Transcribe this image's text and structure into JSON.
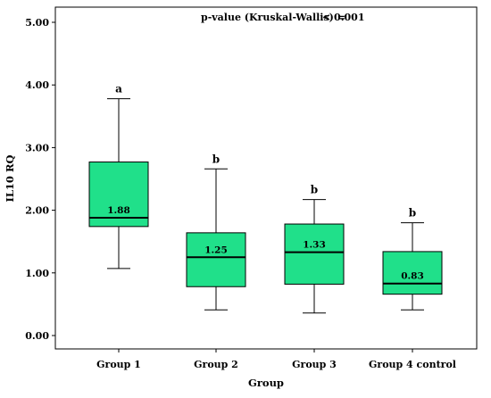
{
  "chart_data": {
    "type": "box",
    "xlabel": "Group",
    "ylabel": "IL10 RQ",
    "ylim": [
      0,
      5
    ],
    "yticks": [
      "0.00",
      "1.00",
      "2.00",
      "3.00",
      "4.00",
      "5.00"
    ],
    "categories": [
      "Group 1",
      "Group 2",
      "Group 3",
      "Group 4 control"
    ],
    "box_color": "#20e08a",
    "annotation": {
      "label": "p-value (Kruskal-Wallis) =",
      "value": "< 0.001"
    },
    "boxes": [
      {
        "category": "Group 1",
        "min": 1.07,
        "q1": 1.74,
        "median": 1.88,
        "q3": 2.77,
        "max": 3.78,
        "median_label": "1.88",
        "letter": "a"
      },
      {
        "category": "Group 2",
        "min": 0.41,
        "q1": 0.78,
        "median": 1.25,
        "q3": 1.64,
        "max": 2.66,
        "median_label": "1.25",
        "letter": "b"
      },
      {
        "category": "Group 3",
        "min": 0.36,
        "q1": 0.82,
        "median": 1.33,
        "q3": 1.78,
        "max": 2.17,
        "median_label": "1.33",
        "letter": "b"
      },
      {
        "category": "Group 4 control",
        "min": 0.41,
        "q1": 0.66,
        "median": 0.83,
        "q3": 1.34,
        "max": 1.8,
        "median_label": "0.83",
        "letter": "b"
      }
    ]
  }
}
